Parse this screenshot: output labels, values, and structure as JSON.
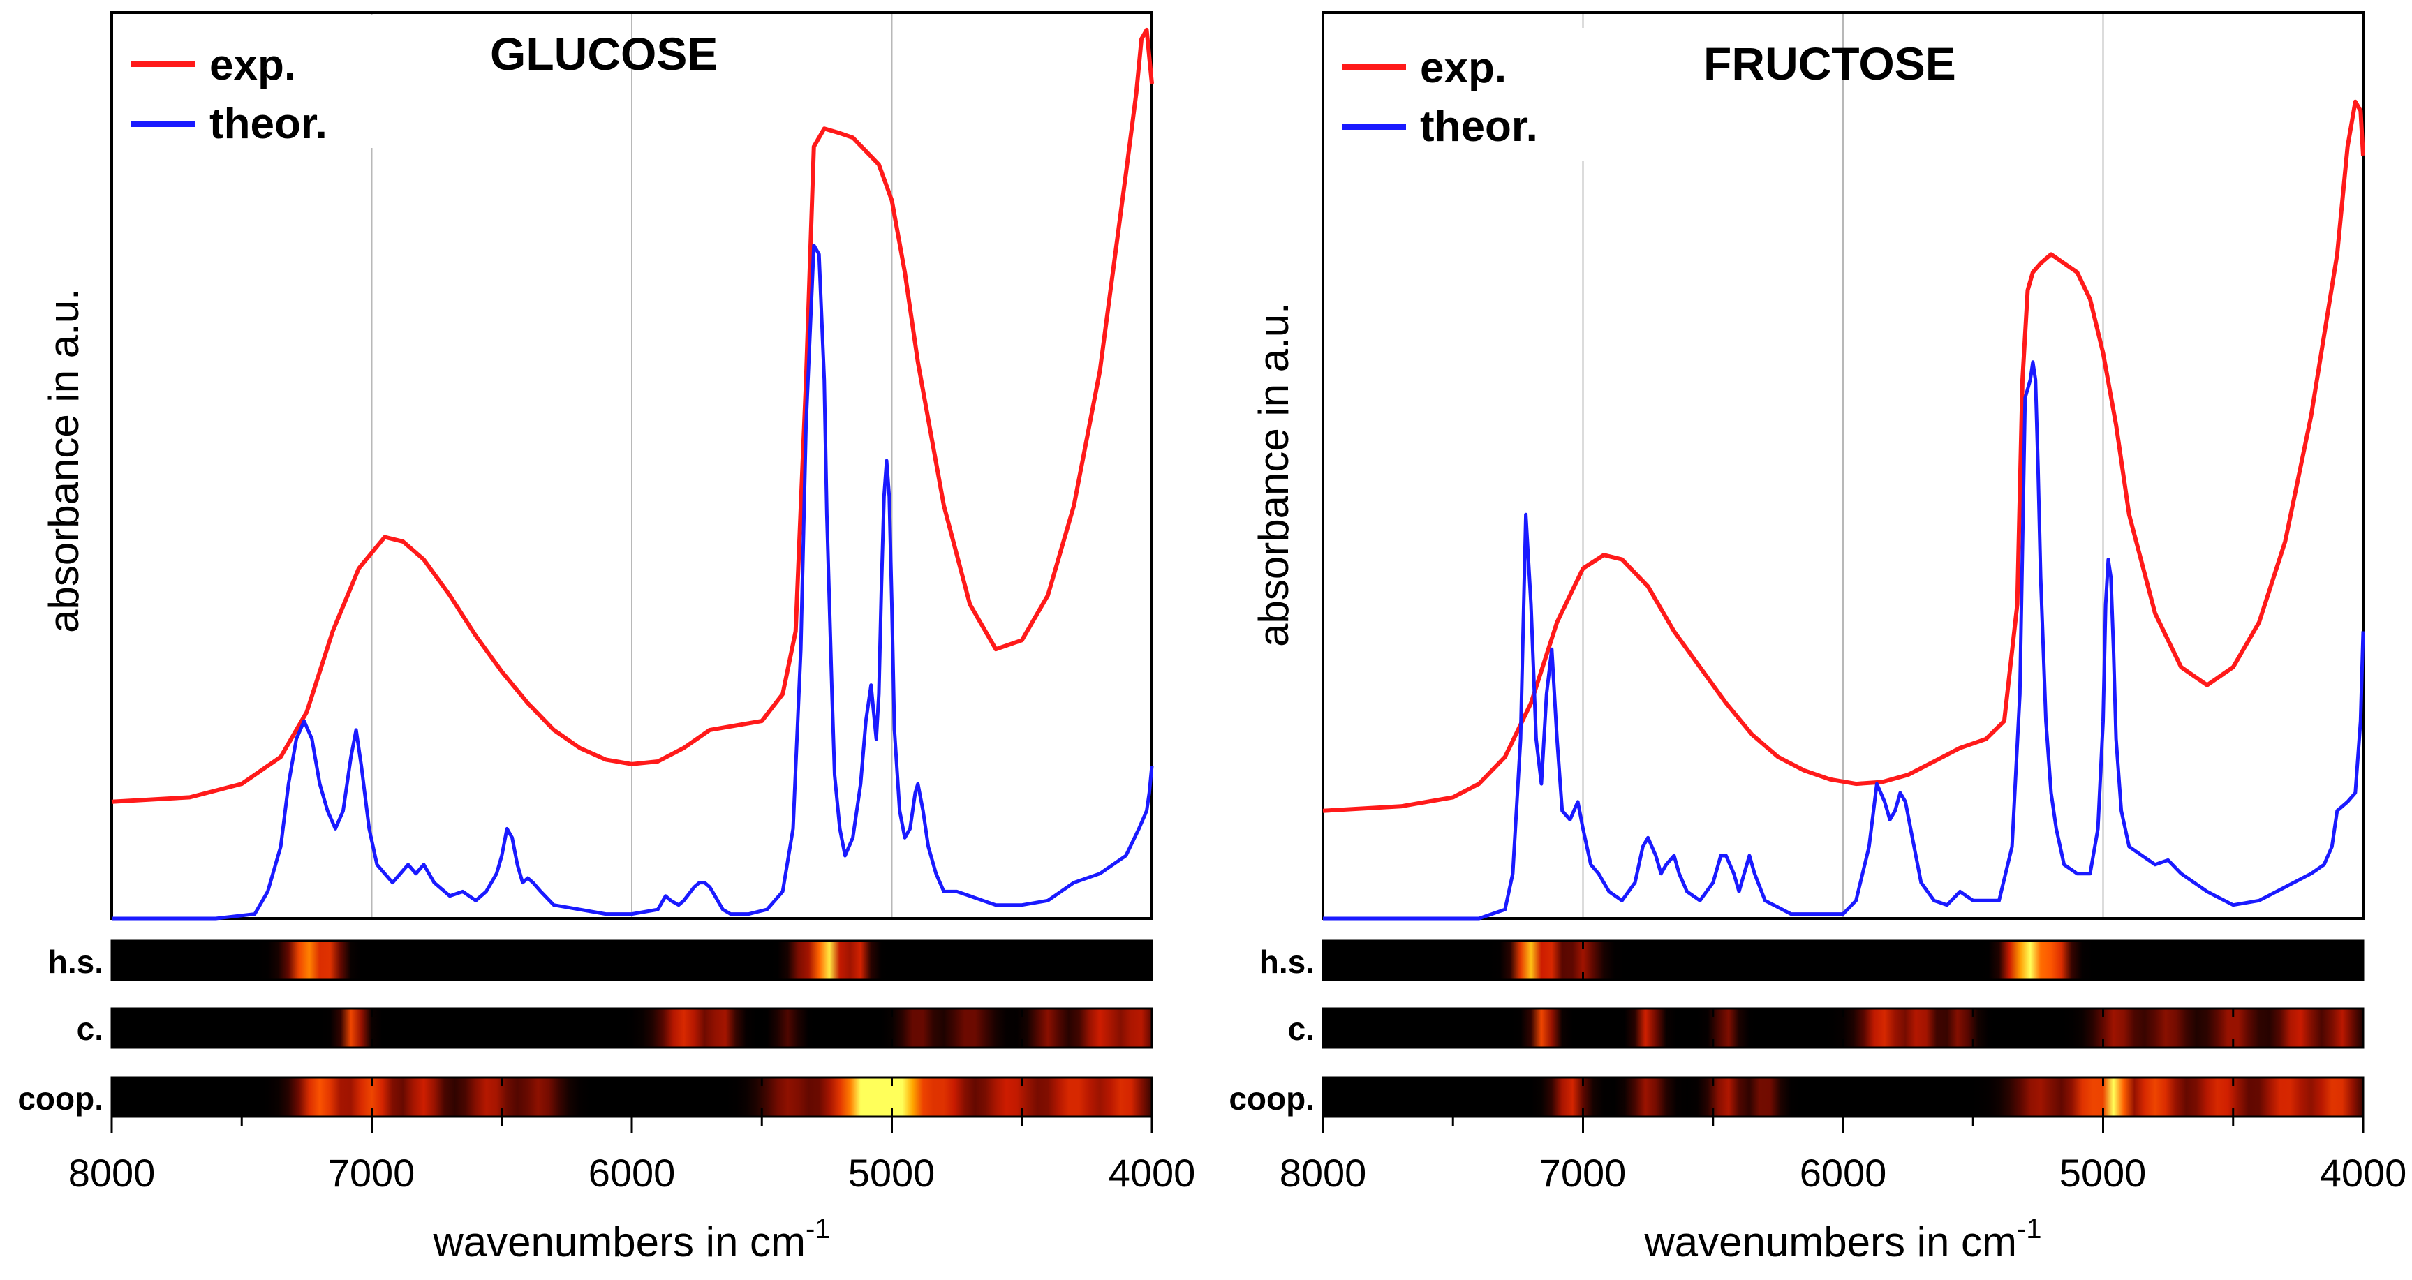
{
  "chart_data": [
    {
      "type": "line",
      "title": "GLUCOSE",
      "xlabel": "wavenumbers in cm",
      "xlabel_sup": "-1",
      "ylabel": "absorbance in a.u.",
      "xlim": [
        8000,
        4000
      ],
      "ylim": [
        0,
        1
      ],
      "x_ticks": [
        "8000",
        "7000",
        "6000",
        "5000",
        "4000"
      ],
      "grid_x": [
        7000,
        6000,
        5000
      ],
      "legend": [
        {
          "label": "exp.",
          "color": "#ff1a1a"
        },
        {
          "label": "theor.",
          "color": "#1a1aff"
        }
      ],
      "series": [
        {
          "name": "exp.",
          "color": "#ff1a1a",
          "x": [
            8000,
            7700,
            7500,
            7350,
            7250,
            7150,
            7050,
            6950,
            6880,
            6800,
            6700,
            6600,
            6500,
            6400,
            6300,
            6200,
            6100,
            6000,
            5900,
            5800,
            5700,
            5600,
            5500,
            5420,
            5370,
            5330,
            5300,
            5280,
            5260,
            5200,
            5150,
            5100,
            5050,
            5000,
            4950,
            4900,
            4800,
            4700,
            4600,
            4500,
            4400,
            4300,
            4200,
            4150,
            4100,
            4060,
            4040,
            4020,
            4000
          ],
          "values": [
            0.13,
            0.135,
            0.15,
            0.18,
            0.23,
            0.32,
            0.39,
            0.425,
            0.42,
            0.4,
            0.36,
            0.315,
            0.275,
            0.24,
            0.21,
            0.19,
            0.177,
            0.172,
            0.175,
            0.19,
            0.21,
            0.215,
            0.22,
            0.25,
            0.32,
            0.6,
            0.86,
            0.87,
            0.88,
            0.875,
            0.87,
            0.855,
            0.84,
            0.8,
            0.72,
            0.62,
            0.46,
            0.35,
            0.3,
            0.31,
            0.36,
            0.46,
            0.61,
            0.72,
            0.83,
            0.92,
            0.98,
            0.99,
            0.93
          ]
        },
        {
          "name": "theor.",
          "color": "#1a1aff",
          "x": [
            8000,
            7600,
            7450,
            7400,
            7350,
            7320,
            7290,
            7260,
            7230,
            7200,
            7170,
            7140,
            7110,
            7080,
            7060,
            7040,
            7010,
            6980,
            6950,
            6920,
            6890,
            6860,
            6830,
            6800,
            6760,
            6720,
            6700,
            6650,
            6600,
            6560,
            6520,
            6500,
            6480,
            6460,
            6440,
            6420,
            6400,
            6380,
            6350,
            6300,
            6200,
            6100,
            6000,
            5900,
            5870,
            5850,
            5820,
            5800,
            5760,
            5740,
            5720,
            5700,
            5680,
            5650,
            5620,
            5550,
            5480,
            5420,
            5380,
            5350,
            5330,
            5300,
            5280,
            5260,
            5250,
            5240,
            5230,
            5220,
            5200,
            5180,
            5150,
            5120,
            5100,
            5080,
            5070,
            5060,
            5050,
            5040,
            5030,
            5020,
            5010,
            5000,
            4990,
            4970,
            4950,
            4930,
            4910,
            4900,
            4880,
            4860,
            4830,
            4800,
            4750,
            4700,
            4650,
            4600,
            4500,
            4400,
            4300,
            4200,
            4100,
            4050,
            4020,
            4010,
            4000
          ],
          "values": [
            0.0,
            0.0,
            0.005,
            0.03,
            0.08,
            0.15,
            0.2,
            0.22,
            0.2,
            0.15,
            0.12,
            0.1,
            0.12,
            0.18,
            0.21,
            0.17,
            0.1,
            0.06,
            0.05,
            0.04,
            0.05,
            0.06,
            0.05,
            0.06,
            0.04,
            0.03,
            0.025,
            0.03,
            0.02,
            0.03,
            0.05,
            0.07,
            0.1,
            0.09,
            0.06,
            0.04,
            0.045,
            0.04,
            0.03,
            0.015,
            0.01,
            0.005,
            0.005,
            0.01,
            0.025,
            0.02,
            0.015,
            0.02,
            0.035,
            0.04,
            0.04,
            0.035,
            0.025,
            0.01,
            0.005,
            0.005,
            0.01,
            0.03,
            0.1,
            0.3,
            0.55,
            0.75,
            0.74,
            0.6,
            0.45,
            0.35,
            0.25,
            0.16,
            0.1,
            0.07,
            0.09,
            0.15,
            0.22,
            0.26,
            0.23,
            0.2,
            0.25,
            0.37,
            0.47,
            0.51,
            0.47,
            0.35,
            0.21,
            0.12,
            0.09,
            0.1,
            0.14,
            0.15,
            0.12,
            0.08,
            0.05,
            0.03,
            0.03,
            0.025,
            0.02,
            0.015,
            0.015,
            0.02,
            0.04,
            0.05,
            0.07,
            0.1,
            0.12,
            0.14,
            0.17
          ]
        }
      ],
      "heat_strips": [
        {
          "label": "h.s.",
          "peaks": [
            [
              7250,
              70,
              0.85
            ],
            [
              7150,
              40,
              0.5
            ],
            [
              5250,
              60,
              1.0
            ],
            [
              5130,
              40,
              0.6
            ],
            [
              5350,
              40,
              0.35
            ]
          ]
        },
        {
          "label": "c.",
          "peaks": [
            [
              7070,
              40,
              0.75
            ],
            [
              5800,
              90,
              0.6
            ],
            [
              5650,
              50,
              0.45
            ],
            [
              5400,
              40,
              0.25
            ],
            [
              4900,
              60,
              0.35
            ],
            [
              4700,
              80,
              0.35
            ],
            [
              4400,
              60,
              0.4
            ],
            [
              4200,
              80,
              0.55
            ],
            [
              4050,
              70,
              0.5
            ]
          ]
        },
        {
          "label": "coop.",
          "peaks": [
            [
              7200,
              90,
              0.75
            ],
            [
              7000,
              90,
              0.7
            ],
            [
              6800,
              80,
              0.55
            ],
            [
              6550,
              100,
              0.5
            ],
            [
              6350,
              80,
              0.4
            ],
            [
              5400,
              100,
              0.4
            ],
            [
              5150,
              120,
              0.75
            ],
            [
              5050,
              70,
              1.0
            ],
            [
              4950,
              80,
              0.8
            ],
            [
              4800,
              100,
              0.6
            ],
            [
              4550,
              120,
              0.55
            ],
            [
              4300,
              110,
              0.6
            ],
            [
              4100,
              90,
              0.6
            ]
          ]
        }
      ]
    },
    {
      "type": "line",
      "title": "FRUCTOSE",
      "xlabel": "wavenumbers in cm",
      "xlabel_sup": "-1",
      "ylabel": "absorbance in a.u.",
      "xlim": [
        8000,
        4000
      ],
      "ylim": [
        0,
        1
      ],
      "x_ticks": [
        "8000",
        "7000",
        "6000",
        "5000",
        "4000"
      ],
      "grid_x": [
        7000,
        6000,
        5000
      ],
      "legend": [
        {
          "label": "exp.",
          "color": "#ff1a1a"
        },
        {
          "label": "theor.",
          "color": "#1a1aff"
        }
      ],
      "series": [
        {
          "name": "exp.",
          "color": "#ff1a1a",
          "x": [
            8000,
            7700,
            7500,
            7400,
            7300,
            7200,
            7100,
            7000,
            6920,
            6850,
            6750,
            6650,
            6550,
            6450,
            6350,
            6250,
            6150,
            6050,
            5950,
            5850,
            5750,
            5650,
            5550,
            5450,
            5380,
            5330,
            5310,
            5290,
            5270,
            5240,
            5200,
            5150,
            5100,
            5050,
            5000,
            4950,
            4900,
            4800,
            4700,
            4600,
            4500,
            4400,
            4300,
            4200,
            4100,
            4060,
            4030,
            4010,
            4000
          ],
          "values": [
            0.12,
            0.125,
            0.135,
            0.15,
            0.18,
            0.24,
            0.33,
            0.39,
            0.405,
            0.4,
            0.37,
            0.32,
            0.28,
            0.24,
            0.205,
            0.18,
            0.165,
            0.155,
            0.15,
            0.152,
            0.16,
            0.175,
            0.19,
            0.2,
            0.22,
            0.35,
            0.6,
            0.7,
            0.72,
            0.73,
            0.74,
            0.73,
            0.72,
            0.69,
            0.63,
            0.55,
            0.45,
            0.34,
            0.28,
            0.26,
            0.28,
            0.33,
            0.42,
            0.56,
            0.74,
            0.86,
            0.91,
            0.9,
            0.85
          ]
        },
        {
          "name": "theor.",
          "color": "#1a1aff",
          "x": [
            8000,
            7400,
            7300,
            7270,
            7240,
            7220,
            7200,
            7180,
            7160,
            7140,
            7120,
            7100,
            7080,
            7050,
            7020,
            7000,
            6970,
            6940,
            6900,
            6850,
            6800,
            6770,
            6750,
            6720,
            6700,
            6680,
            6650,
            6630,
            6600,
            6550,
            6500,
            6470,
            6450,
            6420,
            6400,
            6380,
            6360,
            6340,
            6300,
            6200,
            6100,
            6000,
            5950,
            5900,
            5870,
            5840,
            5820,
            5800,
            5780,
            5760,
            5740,
            5720,
            5700,
            5650,
            5600,
            5550,
            5500,
            5400,
            5350,
            5320,
            5300,
            5280,
            5270,
            5260,
            5250,
            5240,
            5220,
            5200,
            5180,
            5150,
            5100,
            5050,
            5020,
            5000,
            4990,
            4980,
            4970,
            4960,
            4950,
            4930,
            4900,
            4850,
            4800,
            4750,
            4700,
            4600,
            4500,
            4400,
            4300,
            4200,
            4150,
            4120,
            4100,
            4060,
            4030,
            4010,
            4000
          ],
          "values": [
            0.0,
            0.0,
            0.01,
            0.05,
            0.2,
            0.45,
            0.35,
            0.2,
            0.15,
            0.25,
            0.3,
            0.2,
            0.12,
            0.11,
            0.13,
            0.1,
            0.06,
            0.05,
            0.03,
            0.02,
            0.04,
            0.08,
            0.09,
            0.07,
            0.05,
            0.06,
            0.07,
            0.05,
            0.03,
            0.02,
            0.04,
            0.07,
            0.07,
            0.05,
            0.03,
            0.05,
            0.07,
            0.05,
            0.02,
            0.005,
            0.005,
            0.005,
            0.02,
            0.08,
            0.15,
            0.13,
            0.11,
            0.12,
            0.14,
            0.13,
            0.1,
            0.07,
            0.04,
            0.02,
            0.015,
            0.03,
            0.02,
            0.02,
            0.08,
            0.25,
            0.58,
            0.6,
            0.62,
            0.6,
            0.5,
            0.38,
            0.22,
            0.14,
            0.1,
            0.06,
            0.05,
            0.05,
            0.1,
            0.22,
            0.35,
            0.4,
            0.38,
            0.3,
            0.2,
            0.12,
            0.08,
            0.07,
            0.06,
            0.065,
            0.05,
            0.03,
            0.015,
            0.02,
            0.035,
            0.05,
            0.06,
            0.08,
            0.12,
            0.13,
            0.14,
            0.22,
            0.32
          ]
        }
      ],
      "heat_strips": [
        {
          "label": "h.s.",
          "peaks": [
            [
              7210,
              50,
              0.95
            ],
            [
              7120,
              40,
              0.55
            ],
            [
              7000,
              60,
              0.45
            ],
            [
              5280,
              60,
              1.0
            ],
            [
              5180,
              50,
              0.7
            ],
            [
              5350,
              40,
              0.4
            ]
          ]
        },
        {
          "label": "c.",
          "peaks": [
            [
              7150,
              40,
              0.75
            ],
            [
              6750,
              40,
              0.6
            ],
            [
              6450,
              40,
              0.4
            ],
            [
              5850,
              80,
              0.6
            ],
            [
              5700,
              60,
              0.5
            ],
            [
              5550,
              50,
              0.4
            ],
            [
              4950,
              80,
              0.45
            ],
            [
              4750,
              80,
              0.4
            ],
            [
              4500,
              90,
              0.45
            ],
            [
              4250,
              80,
              0.55
            ],
            [
              4080,
              60,
              0.5
            ]
          ]
        },
        {
          "label": "coop.",
          "peaks": [
            [
              7050,
              60,
              0.6
            ],
            [
              6750,
              60,
              0.45
            ],
            [
              6450,
              60,
              0.5
            ],
            [
              6300,
              50,
              0.4
            ],
            [
              5250,
              100,
              0.45
            ],
            [
              5050,
              80,
              0.7
            ],
            [
              4950,
              40,
              1.0
            ],
            [
              4800,
              100,
              0.7
            ],
            [
              4550,
              110,
              0.6
            ],
            [
              4300,
              100,
              0.6
            ],
            [
              4100,
              90,
              0.65
            ]
          ]
        }
      ]
    }
  ]
}
